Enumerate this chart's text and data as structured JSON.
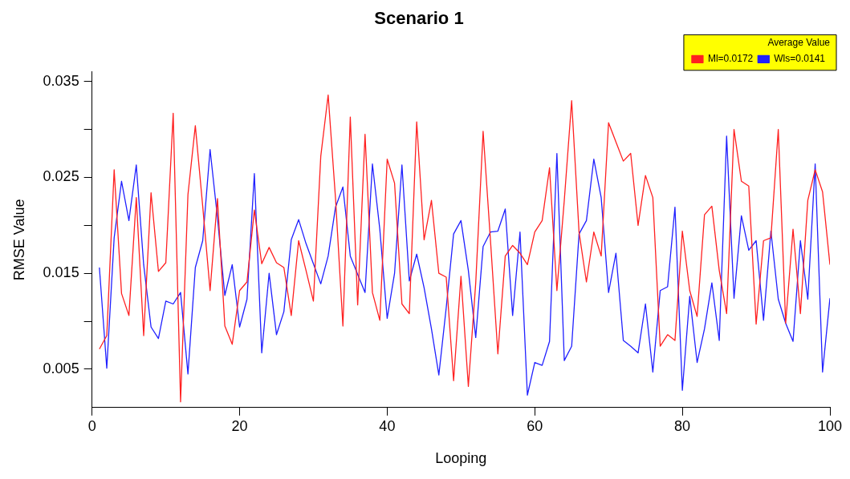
{
  "chart_data": {
    "type": "line",
    "title": "Scenario 1",
    "xlabel": "Looping",
    "ylabel": "RMSE Value",
    "legend_title": "Average Value",
    "legend": "top right",
    "grid": false,
    "x": [
      1,
      2,
      3,
      4,
      5,
      6,
      7,
      8,
      9,
      10,
      11,
      12,
      13,
      14,
      15,
      16,
      17,
      18,
      19,
      20,
      21,
      22,
      23,
      24,
      25,
      26,
      27,
      28,
      29,
      30,
      31,
      32,
      33,
      34,
      35,
      36,
      37,
      38,
      39,
      40,
      41,
      42,
      43,
      44,
      45,
      46,
      47,
      48,
      49,
      50,
      51,
      52,
      53,
      54,
      55,
      56,
      57,
      58,
      59,
      60,
      61,
      62,
      63,
      64,
      65,
      66,
      67,
      68,
      69,
      70,
      71,
      72,
      73,
      74,
      75,
      76,
      77,
      78,
      79,
      80,
      81,
      82,
      83,
      84,
      85,
      86,
      87,
      88,
      89,
      90,
      91,
      92,
      93,
      94,
      95,
      96,
      97,
      98,
      99,
      100
    ],
    "xlim": [
      0,
      100
    ],
    "xticks": [
      0,
      20,
      40,
      60,
      80,
      100
    ],
    "ylim": [
      0.001,
      0.036
    ],
    "yticks": [
      0.005,
      {
        "value": 0.01,
        "label": null
      },
      0.015,
      {
        "value": 0.02,
        "label": null
      },
      0.025,
      {
        "value": 0.03,
        "label": null
      },
      0.035
    ],
    "series": [
      {
        "name": "Ml=0.0172",
        "color": "#ff2020",
        "values": [
          0.0071,
          0.0085,
          0.0258,
          0.0129,
          0.0106,
          0.0229,
          0.0085,
          0.0234,
          0.0152,
          0.0161,
          0.0317,
          0.0016,
          0.0232,
          0.0304,
          0.022,
          0.0132,
          0.0228,
          0.0095,
          0.0076,
          0.0132,
          0.0141,
          0.0216,
          0.016,
          0.0177,
          0.0161,
          0.0156,
          0.0106,
          0.0184,
          0.0153,
          0.0121,
          0.0272,
          0.0336,
          0.0228,
          0.0095,
          0.0313,
          0.0117,
          0.0295,
          0.013,
          0.0101,
          0.0269,
          0.0244,
          0.0118,
          0.0108,
          0.0308,
          0.0185,
          0.0226,
          0.015,
          0.0146,
          0.0038,
          0.0147,
          0.0032,
          0.014,
          0.0298,
          0.0184,
          0.0066,
          0.0168,
          0.0179,
          0.0171,
          0.0159,
          0.0193,
          0.0205,
          0.026,
          0.0132,
          0.0226,
          0.033,
          0.0193,
          0.0141,
          0.0193,
          0.0168,
          0.0307,
          0.0287,
          0.0267,
          0.0275,
          0.02,
          0.0252,
          0.0229,
          0.0074,
          0.0086,
          0.008,
          0.0194,
          0.0132,
          0.0105,
          0.0211,
          0.022,
          0.0153,
          0.0108,
          0.03,
          0.0246,
          0.0241,
          0.0097,
          0.0184,
          0.0187,
          0.03,
          0.0098,
          0.0196,
          0.0108,
          0.0226,
          0.0258,
          0.0235,
          0.0159
        ]
      },
      {
        "name": "Wls=0.0141",
        "color": "#2020ff",
        "values": [
          0.0156,
          0.0051,
          0.0187,
          0.0246,
          0.0205,
          0.0263,
          0.0159,
          0.0094,
          0.0082,
          0.0121,
          0.0118,
          0.013,
          0.0045,
          0.0156,
          0.0184,
          0.0279,
          0.0208,
          0.0127,
          0.0159,
          0.0094,
          0.0123,
          0.0254,
          0.0067,
          0.015,
          0.0086,
          0.011,
          0.0185,
          0.0206,
          0.0181,
          0.016,
          0.0139,
          0.0168,
          0.0219,
          0.024,
          0.0168,
          0.0149,
          0.013,
          0.0264,
          0.0196,
          0.0103,
          0.015,
          0.0263,
          0.0142,
          0.017,
          0.0135,
          0.0092,
          0.0044,
          0.0114,
          0.0191,
          0.0205,
          0.0153,
          0.0083,
          0.0178,
          0.0193,
          0.0194,
          0.0217,
          0.0106,
          0.0193,
          0.0023,
          0.0057,
          0.0054,
          0.0079,
          0.0275,
          0.0059,
          0.0074,
          0.0191,
          0.0205,
          0.0269,
          0.0229,
          0.013,
          0.0171,
          0.008,
          0.0074,
          0.0067,
          0.0118,
          0.0047,
          0.0132,
          0.0136,
          0.0219,
          0.0028,
          0.0126,
          0.0057,
          0.0092,
          0.014,
          0.008,
          0.0293,
          0.0124,
          0.021,
          0.0174,
          0.0184,
          0.0101,
          0.0194,
          0.0123,
          0.0098,
          0.0079,
          0.0184,
          0.0123,
          0.0264,
          0.0047,
          0.0124
        ]
      }
    ]
  }
}
